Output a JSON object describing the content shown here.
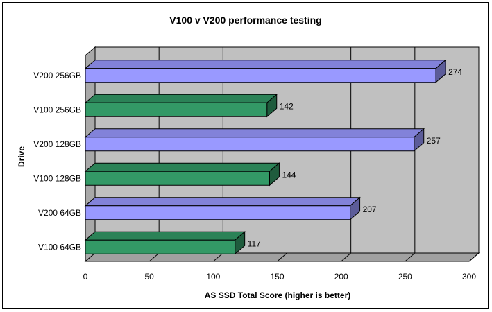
{
  "chart_data": {
    "type": "bar",
    "orientation": "horizontal",
    "title": "V100 v V200 performance testing",
    "xlabel": "AS SSD Total Score (higher is better)",
    "ylabel": "Drive",
    "categories": [
      "V200 256GB",
      "V100 256GB",
      "V200 128GB",
      "V100 128GB",
      "V200 64GB",
      "V100 64GB"
    ],
    "values": [
      274,
      142,
      257,
      144,
      207,
      117
    ],
    "xlim": [
      0,
      300
    ],
    "xticks": [
      "0",
      "50",
      "100",
      "150",
      "200",
      "250",
      "300"
    ],
    "grid": true,
    "legend": "none",
    "style_3d": true,
    "colors": {
      "v200": "#9999ff",
      "v100": "#339966",
      "plot_wall": "#c0c0c0"
    }
  }
}
